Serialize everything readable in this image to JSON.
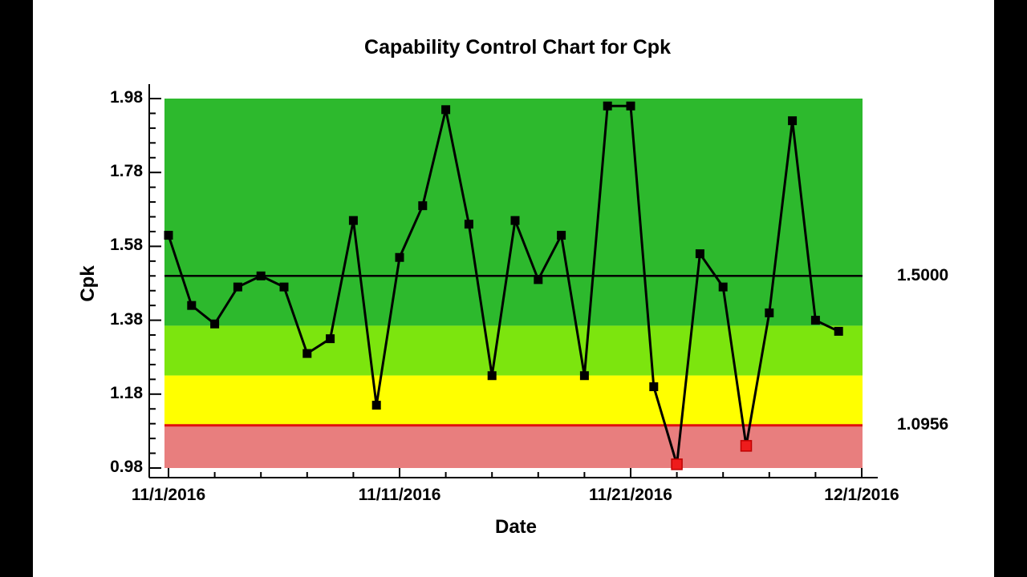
{
  "title": "Capability Control Chart for Cpk",
  "chart_data": {
    "type": "line",
    "title": "Capability Control Chart for Cpk",
    "xlabel": "Date",
    "ylabel": "Cpk",
    "ylim": [
      0.98,
      1.98
    ],
    "y_major_ticks": [
      0.98,
      1.18,
      1.38,
      1.58,
      1.78,
      1.98
    ],
    "y_minor_step": 0.04,
    "x_domain_days": [
      1,
      31
    ],
    "x_major_ticks": [
      {
        "day": 1,
        "label": "11/1/2016"
      },
      {
        "day": 11,
        "label": "11/11/2016"
      },
      {
        "day": 21,
        "label": "11/21/2016"
      },
      {
        "day": 31,
        "label": "12/1/2016"
      }
    ],
    "x_minor_every_days": 2,
    "grid": false,
    "legend": "none",
    "center_line": {
      "value": 1.5,
      "label": "1.5000",
      "color": "#000000"
    },
    "lower_control_limit": {
      "value": 1.0956,
      "label": "1.0956",
      "color": "#e01010"
    },
    "zones": [
      {
        "name": "green",
        "from": 1.3652,
        "to": 1.98,
        "color": "#2db92d"
      },
      {
        "name": "light-green",
        "from": 1.2304,
        "to": 1.3652,
        "color": "#7ce50e"
      },
      {
        "name": "yellow",
        "from": 1.0956,
        "to": 1.2304,
        "color": "#ffff00"
      },
      {
        "name": "red",
        "from": 0.98,
        "to": 1.0956,
        "color": "#e87e7e"
      }
    ],
    "series": [
      {
        "name": "Cpk",
        "color": "#000000",
        "marker": "square",
        "days": [
          1,
          2,
          3,
          4,
          5,
          6,
          7,
          8,
          9,
          10,
          11,
          12,
          13,
          14,
          15,
          16,
          17,
          18,
          19,
          20,
          21,
          22,
          23,
          24,
          25,
          26,
          27,
          28,
          29,
          30
        ],
        "values": [
          1.61,
          1.42,
          1.37,
          1.47,
          1.5,
          1.47,
          1.29,
          1.33,
          1.65,
          1.15,
          1.55,
          1.69,
          1.95,
          1.64,
          1.23,
          1.65,
          1.49,
          1.61,
          1.23,
          1.96,
          1.96,
          1.2,
          0.99,
          1.56,
          1.47,
          1.04,
          1.4,
          1.92,
          1.38,
          1.35
        ],
        "out_of_control_days": [
          23,
          26
        ],
        "out_of_control_color": "#ee1c1c"
      }
    ]
  }
}
